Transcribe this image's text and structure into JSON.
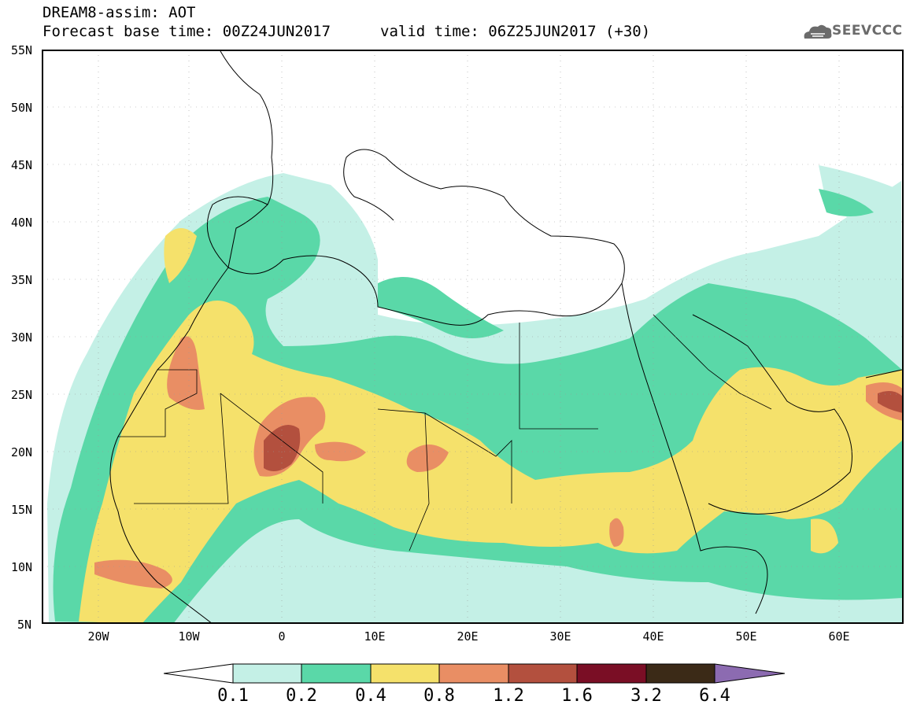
{
  "header": {
    "title_line1": "DREAM8-assim: AOT",
    "title_line2": "Forecast base time: 00Z24JUN2017",
    "valid_time": "valid time: 06Z25JUN2017 (+30)",
    "logo_text": "SEEVCCC"
  },
  "map": {
    "lat_labels": [
      "55N",
      "50N",
      "45N",
      "40N",
      "35N",
      "30N",
      "25N",
      "20N",
      "15N",
      "10N",
      "5N"
    ],
    "lon_labels": [
      "20W",
      "10W",
      "0",
      "10E",
      "20E",
      "30E",
      "40E",
      "50E",
      "60E"
    ]
  },
  "colorbar": {
    "labels": [
      "0.1",
      "0.2",
      "0.4",
      "0.8",
      "1.2",
      "1.6",
      "3.2",
      "6.4"
    ],
    "colors": [
      "#c4f0e6",
      "#5ad8a8",
      "#f5e16b",
      "#e98e64",
      "#b3503e",
      "#7a0e25",
      "#3b2a17",
      "#8c6bb1"
    ]
  }
}
